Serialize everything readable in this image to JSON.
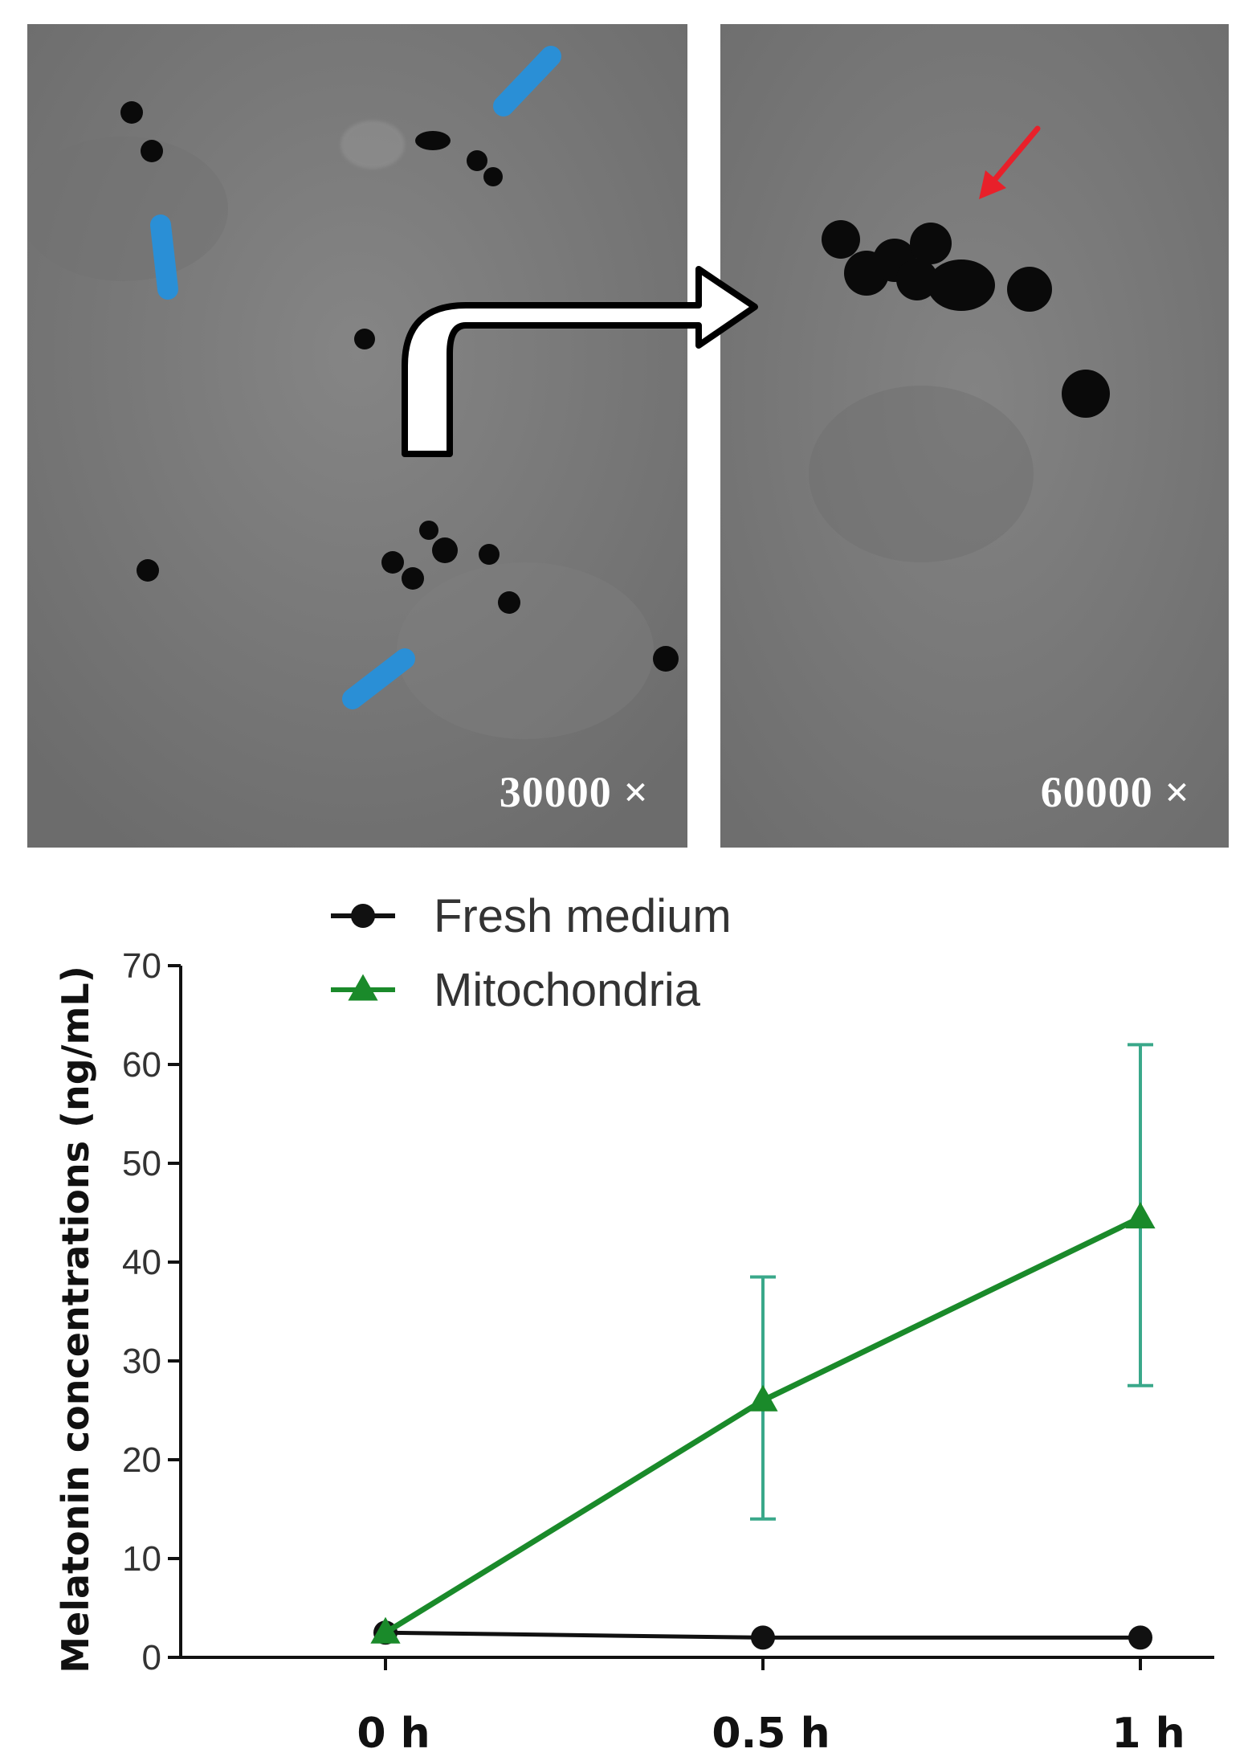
{
  "micrographs": {
    "left": {
      "magnification_label": "30000 ×"
    },
    "right": {
      "magnification_label": "60000 ×"
    },
    "colors": {
      "background": "#7a7a7a",
      "particle": "#0a0a0a",
      "highlight": "#2a8fd6",
      "annotation_arrow": "#e8202a"
    },
    "icons": [
      "bent-arrow-icon",
      "red-pointer-arrow-icon"
    ]
  },
  "chart_data": {
    "type": "line",
    "title": "",
    "xlabel": "",
    "ylabel": "Melatonin concentrations (ng/mL)",
    "categories": [
      "0 h",
      "0.5 h",
      "1 h"
    ],
    "ylim": [
      0,
      70
    ],
    "yticks": [
      "0",
      "10",
      "20",
      "30",
      "40",
      "50",
      "60",
      "70"
    ],
    "grid": false,
    "legend_position": "top-left",
    "series": [
      {
        "name": "Fresh medium",
        "marker": "circle",
        "color": "#111111",
        "values": [
          2.5,
          2,
          2
        ],
        "error_low": [
          2.5,
          2,
          2
        ],
        "error_high": [
          2.5,
          2,
          2
        ]
      },
      {
        "name": "Mitochondria",
        "marker": "triangle",
        "color": "#1a8a2a",
        "error_color": "#3aa88a",
        "values": [
          2.5,
          26,
          44.5
        ],
        "error_low": [
          2.5,
          14,
          27.5
        ],
        "error_high": [
          2.5,
          38.5,
          62
        ]
      }
    ]
  }
}
